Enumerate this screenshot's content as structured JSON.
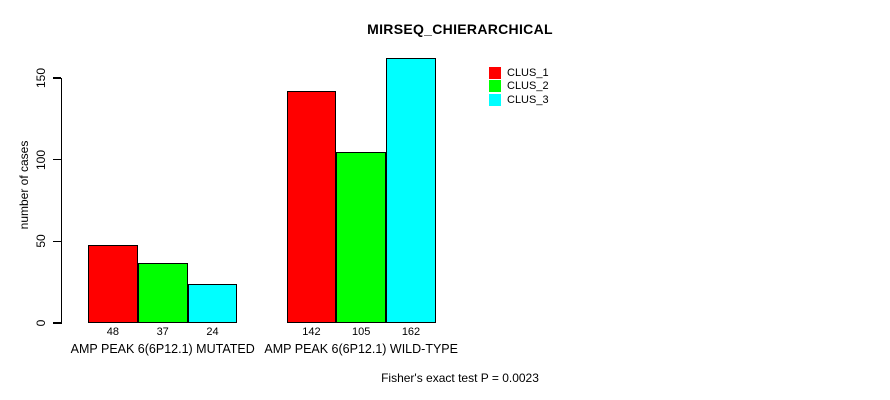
{
  "chart_data": {
    "type": "bar",
    "title": "MIRSEQ_CHIERARCHICAL",
    "xlabel": "",
    "ylabel": "number of cases",
    "categories": [
      "AMP PEAK 6(6P12.1) MUTATED",
      "AMP PEAK 6(6P12.1) WILD-TYPE"
    ],
    "series": [
      {
        "name": "CLUS_1",
        "color": "#ff0000",
        "values": [
          48,
          142
        ]
      },
      {
        "name": "CLUS_2",
        "color": "#00ff00",
        "values": [
          37,
          105
        ]
      },
      {
        "name": "CLUS_3",
        "color": "#00ffff",
        "values": [
          24,
          162
        ]
      }
    ],
    "bar_value_labels": [
      [
        48,
        37,
        24
      ],
      [
        142,
        105,
        162
      ]
    ],
    "yticks": [
      0,
      50,
      100,
      150
    ],
    "ylim": [
      0,
      162
    ],
    "grid": false,
    "legend_position": "top-right",
    "bar_border_color": "#000000",
    "annotation": "Fisher's exact test P = 0.0023"
  }
}
